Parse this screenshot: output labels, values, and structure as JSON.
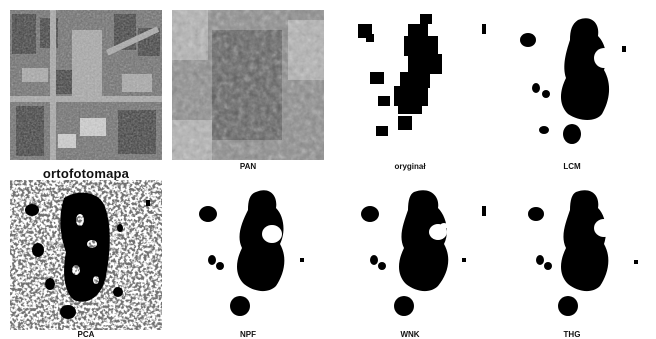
{
  "panels": [
    {
      "label": "ortofotomapa"
    },
    {
      "label": "PAN"
    },
    {
      "label": "oryginał"
    },
    {
      "label": "LCM"
    },
    {
      "label": "PCA"
    },
    {
      "label": "NPF"
    },
    {
      "label": "WNK"
    },
    {
      "label": "THG"
    }
  ]
}
